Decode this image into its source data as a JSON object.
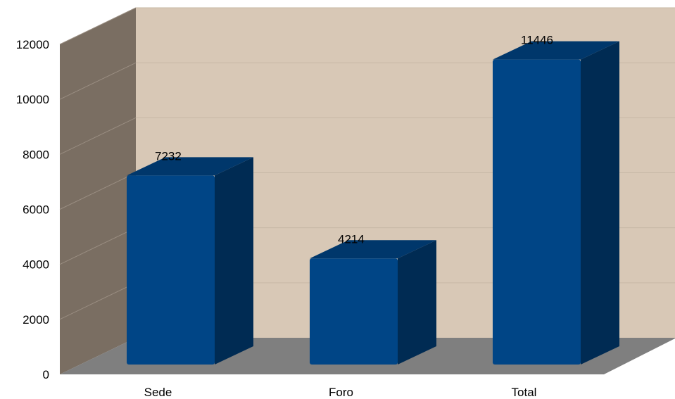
{
  "chart_data": {
    "type": "bar",
    "categories": [
      "Sede",
      "Foro",
      "Total"
    ],
    "values": [
      7232,
      4214,
      11446
    ],
    "data_labels": [
      "7232",
      "4214",
      "11446"
    ],
    "yticks": [
      0,
      2000,
      4000,
      6000,
      8000,
      10000,
      12000
    ],
    "ytick_labels": [
      "0",
      "2000",
      "4000",
      "6000",
      "8000",
      "10000",
      "12000"
    ],
    "ylim": [
      0,
      12000
    ],
    "grid": true,
    "style": "3d",
    "colors": {
      "bar_front": "#004586",
      "bar_side": "#002b53",
      "bar_top": "#00376b",
      "back_wall": "#d8c8b6",
      "side_wall": "#7a6e62",
      "floor": "#7f7f7f"
    }
  }
}
